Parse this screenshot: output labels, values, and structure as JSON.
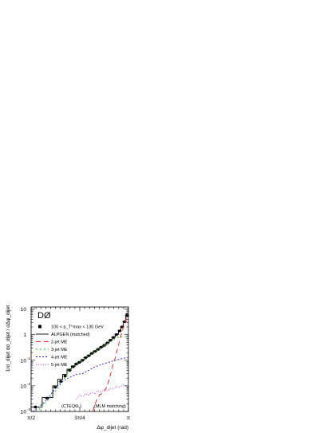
{
  "chart_data": {
    "type": "line",
    "title": "",
    "experiment_label": "DØ",
    "xlabel": "Δφ_dijet  (rad)",
    "ylabel": "1/σ_dijet  dσ_dijet / dΔφ_dijet",
    "x_ticks": [
      {
        "value": 1.5708,
        "label": "π/2"
      },
      {
        "value": 2.3562,
        "label": "3π/4"
      },
      {
        "value": 3.1416,
        "label": "π"
      }
    ],
    "xlim": [
      1.5708,
      3.1416
    ],
    "yscale": "log",
    "ylim": [
      0.001,
      12
    ],
    "y_ticks": [
      {
        "value": 0.001,
        "label": "10",
        "exp": "-3"
      },
      {
        "value": 0.01,
        "label": "10",
        "exp": "-2"
      },
      {
        "value": 0.1,
        "label": "10",
        "exp": "-1"
      },
      {
        "value": 1,
        "label": "1",
        "exp": ""
      },
      {
        "value": 10,
        "label": "10",
        "exp": ""
      }
    ],
    "legend_location": "upper-left",
    "cut_label": "100 < p_T^max < 130 GeV",
    "annotations": [
      "(CTEQ6L)",
      "(MLM matching)"
    ],
    "series": [
      {
        "name": "100 < p_T^max < 130 GeV",
        "kind": "points",
        "color": "#000000",
        "x": [
          1.64,
          1.83,
          1.96,
          2.05,
          2.12,
          2.19,
          2.25,
          2.3,
          2.35,
          2.4,
          2.45,
          2.5,
          2.55,
          2.6,
          2.65,
          2.7,
          2.75,
          2.8,
          2.85,
          2.9,
          2.95,
          3.0,
          3.04,
          3.08,
          3.12
        ],
        "y": [
          0.0015,
          0.0033,
          0.009,
          0.015,
          0.024,
          0.04,
          0.056,
          0.071,
          0.083,
          0.1,
          0.125,
          0.15,
          0.185,
          0.22,
          0.265,
          0.32,
          0.38,
          0.47,
          0.6,
          0.78,
          1.0,
          1.4,
          2.0,
          3.2,
          5.5
        ]
      },
      {
        "name": "ALPGEN (matched)",
        "kind": "step",
        "color": "#000000",
        "edges": [
          1.5708,
          1.75,
          1.92,
          2.0,
          2.08,
          2.15,
          2.22,
          2.28,
          2.33,
          2.38,
          2.43,
          2.48,
          2.53,
          2.58,
          2.63,
          2.68,
          2.73,
          2.78,
          2.83,
          2.88,
          2.93,
          2.98,
          3.02,
          3.06,
          3.1,
          3.1416
        ],
        "y": [
          0.0015,
          0.0035,
          0.01,
          0.018,
          0.028,
          0.045,
          0.06,
          0.075,
          0.088,
          0.105,
          0.13,
          0.155,
          0.19,
          0.225,
          0.27,
          0.33,
          0.39,
          0.48,
          0.61,
          0.8,
          1.05,
          1.45,
          2.1,
          3.3,
          6.5
        ]
      },
      {
        "name": "2-jet ME",
        "kind": "line",
        "color": "#ee1c1c",
        "dash": "6,4",
        "x": [
          2.57,
          2.59,
          2.62,
          2.65,
          2.68,
          2.72,
          2.76,
          2.8,
          2.84,
          2.88,
          2.93,
          2.98,
          3.03,
          3.08,
          3.13
        ],
        "y": [
          0.001,
          0.0017,
          0.0025,
          0.0035,
          0.0045,
          0.005,
          0.0065,
          0.01,
          0.022,
          0.05,
          0.13,
          0.4,
          1.1,
          2.8,
          5.5
        ]
      },
      {
        "name": "3-jet ME",
        "kind": "line",
        "color": "#22bb22",
        "dash": "2,3",
        "x": [
          1.7,
          1.8,
          1.9,
          2.0,
          2.1,
          2.2,
          2.3,
          2.4,
          2.5,
          2.6,
          2.7,
          2.8,
          2.9,
          3.0,
          3.05,
          3.1,
          3.14
        ],
        "y": [
          0.0012,
          0.0022,
          0.004,
          0.008,
          0.018,
          0.045,
          0.075,
          0.1,
          0.145,
          0.21,
          0.3,
          0.44,
          0.63,
          0.85,
          0.83,
          0.8,
          0.78
        ]
      },
      {
        "name": "4-jet ME",
        "kind": "line",
        "color": "#1a1acc",
        "dash": "2,2",
        "x": [
          1.6,
          1.7,
          1.8,
          1.9,
          2.0,
          2.1,
          2.2,
          2.3,
          2.4,
          2.5,
          2.6,
          2.7,
          2.8,
          2.9,
          3.0,
          3.1,
          3.14
        ],
        "y": [
          0.001,
          0.0015,
          0.0025,
          0.005,
          0.01,
          0.016,
          0.022,
          0.028,
          0.03,
          0.04,
          0.055,
          0.068,
          0.08,
          0.095,
          0.11,
          0.125,
          0.13
        ]
      },
      {
        "name": "5-jet ME",
        "kind": "line",
        "color": "#cc22cc",
        "dash": "1,2",
        "x": [
          2.3,
          2.36,
          2.4,
          2.45,
          2.5,
          2.55,
          2.6,
          2.65,
          2.7,
          2.75,
          2.8,
          2.85,
          2.9,
          2.95,
          3.0,
          3.05,
          3.1,
          3.14
        ],
        "y": [
          0.003,
          0.0045,
          0.0038,
          0.005,
          0.0043,
          0.0055,
          0.005,
          0.0065,
          0.0058,
          0.0072,
          0.0064,
          0.008,
          0.0075,
          0.0095,
          0.009,
          0.011,
          0.01,
          0.0095
        ]
      }
    ]
  }
}
